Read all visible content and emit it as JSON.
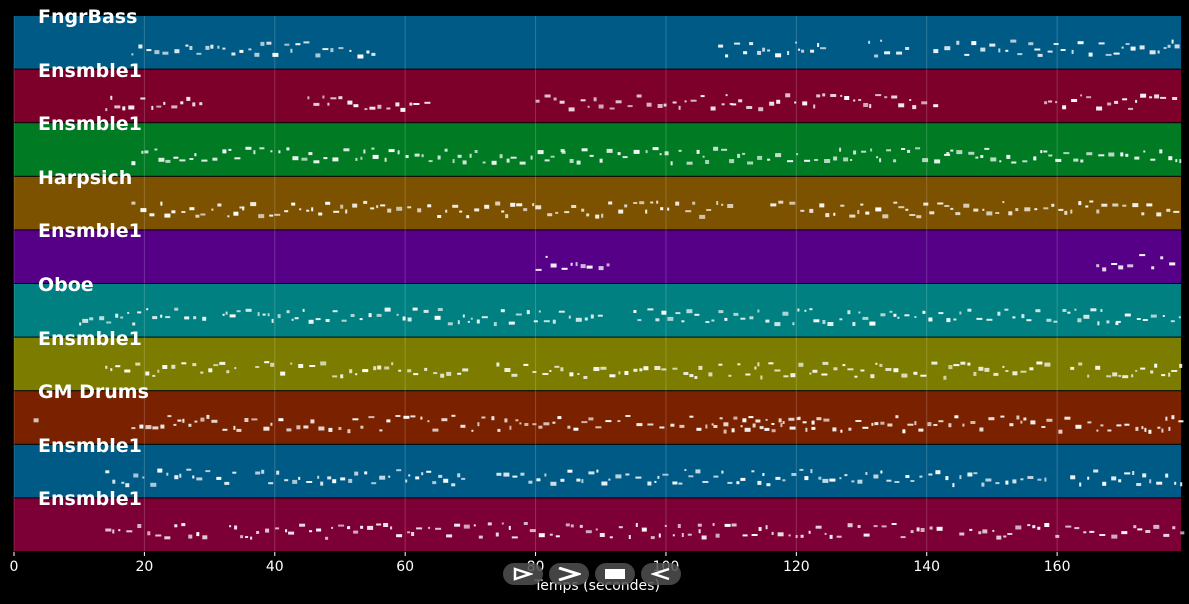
{
  "x_axis": {
    "label": "Temps (secondes)",
    "ticks": [
      "0",
      "20",
      "40",
      "60",
      "80",
      "100",
      "120",
      "140",
      "160"
    ],
    "range": [
      0,
      179
    ]
  },
  "tracks": [
    {
      "label": "FngrBass",
      "color": "#005a86"
    },
    {
      "label": "Ensmble1",
      "color": "#7c0029"
    },
    {
      "label": "Ensmble1",
      "color": "#007b23"
    },
    {
      "label": "Harpsich",
      "color": "#7c5100"
    },
    {
      "label": "Ensmble1",
      "color": "#560087"
    },
    {
      "label": "Oboe",
      "color": "#008080"
    },
    {
      "label": "Ensmble1",
      "color": "#7c7d00"
    },
    {
      "label": "GM Drums",
      "color": "#7a2200"
    },
    {
      "label": "Ensmble1",
      "color": "#005a86"
    },
    {
      "label": "Ensmble1",
      "color": "#7c0035"
    }
  ],
  "controls": [
    {
      "name": "play-button",
      "icon": "play-outline-icon"
    },
    {
      "name": "forward-button",
      "icon": "chevron-right-icon"
    },
    {
      "name": "stop-button",
      "icon": "stop-icon"
    },
    {
      "name": "back-button",
      "icon": "rewind-outline-icon"
    }
  ],
  "note_segments": [
    [
      [
        18,
        55
      ],
      [
        108,
        124
      ],
      [
        131,
        138
      ],
      [
        141,
        157
      ],
      [
        157,
        179
      ]
    ],
    [
      [
        14,
        29
      ],
      [
        45,
        64
      ],
      [
        80,
        110
      ],
      [
        110,
        142
      ],
      [
        158,
        179
      ]
    ],
    [
      [
        18,
        55
      ],
      [
        55,
        84
      ],
      [
        84,
        106
      ],
      [
        106,
        143
      ],
      [
        143,
        179
      ]
    ],
    [
      [
        18,
        35
      ],
      [
        35,
        110
      ],
      [
        116,
        179
      ]
    ],
    [
      [
        80,
        91
      ],
      [
        166,
        179
      ]
    ],
    [
      [
        10,
        29
      ],
      [
        32,
        65
      ],
      [
        65,
        91
      ],
      [
        95,
        124
      ],
      [
        124,
        169
      ],
      [
        169,
        179
      ]
    ],
    [
      [
        14,
        34
      ],
      [
        37,
        69
      ],
      [
        74,
        124
      ],
      [
        124,
        159
      ],
      [
        162,
        179
      ]
    ],
    [
      [
        3,
        4
      ],
      [
        18,
        179
      ],
      [
        107,
        123
      ]
    ],
    [
      [
        14,
        34
      ],
      [
        37,
        69
      ],
      [
        74,
        124
      ],
      [
        124,
        159
      ],
      [
        162,
        179
      ]
    ],
    [
      [
        14,
        29
      ],
      [
        33,
        69
      ],
      [
        69,
        105
      ],
      [
        105,
        142
      ],
      [
        145,
        179
      ]
    ]
  ]
}
